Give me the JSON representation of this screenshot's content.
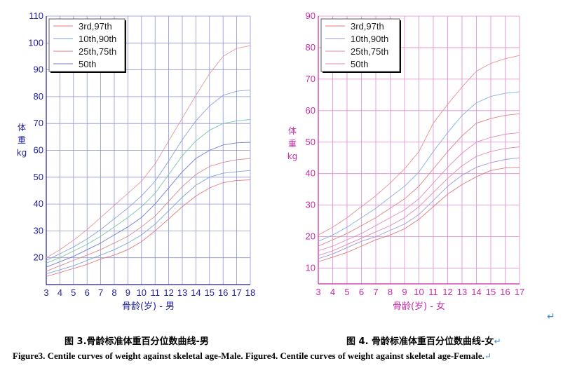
{
  "captions": {
    "male_cn": "图 3.骨龄标准体重百分位数曲线-男",
    "female_cn": "图 4. 骨龄标准体重百分位数曲线-女",
    "english": "Figure3. Centile curves of weight against skeletal age-Male. Figure4. Centile curves of weight against skeletal age-Female."
  },
  "chart_data": [
    {
      "type": "line",
      "id": "male",
      "color": "#1f1f9e",
      "xlabel": "骨龄(岁) - 男",
      "ylabel_lines": [
        "体",
        "重",
        "kg"
      ],
      "xlim": [
        3,
        18
      ],
      "ylim": [
        10,
        110
      ],
      "xticks": [
        3,
        4,
        5,
        6,
        7,
        8,
        9,
        10,
        11,
        12,
        13,
        14,
        15,
        16,
        17,
        18
      ],
      "yticks": [
        20,
        30,
        40,
        50,
        60,
        70,
        80,
        90,
        100,
        110
      ],
      "grid": true,
      "legend_position": "top-left",
      "legend": [
        "3rd,97th",
        "10th,90th",
        "25th,75th",
        "50th"
      ],
      "x": [
        3,
        4,
        5,
        6,
        7,
        8,
        9,
        10,
        11,
        12,
        13,
        14,
        15,
        16,
        17,
        18
      ],
      "series": [
        {
          "group": "3rd,97th",
          "color": "#e07a7a",
          "values": [
            13,
            14.5,
            16,
            17.5,
            19.5,
            21,
            23,
            26,
            30,
            34.5,
            39,
            43,
            46,
            48,
            48.8,
            49
          ]
        },
        {
          "group": "10th,90th",
          "color": "#7fa3d6",
          "values": [
            14,
            15.5,
            17,
            19,
            21,
            23,
            25.5,
            28.5,
            32.5,
            37.5,
            42.5,
            47,
            50,
            51.5,
            52,
            52.5
          ]
        },
        {
          "group": "25th,75th",
          "color": "#d88a8a",
          "values": [
            15,
            17,
            19,
            21,
            23,
            25.5,
            28,
            31.5,
            35.5,
            41,
            46.5,
            51,
            54,
            55.5,
            56.5,
            57
          ]
        },
        {
          "group": "50th",
          "color": "#6f7fd0",
          "values": [
            16.5,
            18.5,
            20.5,
            23,
            25.5,
            28.5,
            31.5,
            35,
            40,
            46,
            52,
            57,
            60,
            62,
            62.8,
            63
          ]
        },
        {
          "group": "25th,75th",
          "color": "#7cc7a8",
          "values": [
            18,
            20,
            22.5,
            25,
            28,
            31.5,
            35,
            39,
            44,
            51,
            58,
            63.5,
            67.5,
            70,
            71,
            71.5
          ]
        },
        {
          "group": "10th,90th",
          "color": "#8aa0d8",
          "values": [
            19,
            21.5,
            24,
            27,
            30.5,
            34.5,
            38.5,
            43,
            48.5,
            56,
            64,
            71,
            76.5,
            80.5,
            82,
            82.5
          ]
        },
        {
          "group": "3rd,97th",
          "color": "#e39a9a",
          "values": [
            20,
            23,
            26.5,
            30.5,
            35,
            39.5,
            44,
            48.5,
            55,
            63.5,
            72,
            80.5,
            88.5,
            95,
            98,
            99
          ]
        }
      ]
    },
    {
      "type": "line",
      "id": "female",
      "color": "#c62ba8",
      "xlabel": "骨龄(岁) - 女",
      "ylabel_lines": [
        "体",
        "重",
        "kg"
      ],
      "xlim": [
        3,
        17
      ],
      "ylim": [
        5,
        90
      ],
      "xticks": [
        3,
        4,
        5,
        6,
        7,
        8,
        9,
        10,
        11,
        12,
        13,
        14,
        15,
        16,
        17
      ],
      "yticks": [
        10,
        20,
        30,
        40,
        50,
        60,
        70,
        80,
        90
      ],
      "grid": true,
      "legend_position": "top-left",
      "legend": [
        "3rd,97th",
        "10th,90th",
        "25th,75th",
        "50th"
      ],
      "x": [
        3,
        4,
        5,
        6,
        7,
        8,
        9,
        10,
        11,
        12,
        13,
        14,
        15,
        16,
        17
      ],
      "series": [
        {
          "group": "3rd,97th",
          "color": "#e07a7a",
          "values": [
            12,
            13.5,
            15,
            17,
            19,
            20.5,
            22.5,
            25.5,
            29.5,
            33.5,
            36.5,
            39,
            41,
            41.8,
            42
          ]
        },
        {
          "group": "10th,90th",
          "color": "#9a9ad8",
          "values": [
            13,
            14.5,
            16.5,
            18.5,
            20,
            22,
            24,
            27,
            31.5,
            36,
            39.5,
            42,
            43.5,
            44.5,
            45
          ]
        },
        {
          "group": "25th,75th",
          "color": "#e08ab0",
          "values": [
            14,
            15.5,
            17.5,
            19.5,
            21.5,
            23.5,
            26,
            29.5,
            34,
            38.5,
            42.5,
            45.5,
            47,
            48,
            48.5
          ]
        },
        {
          "group": "50th",
          "color": "#e48ac0",
          "values": [
            15.5,
            17,
            19,
            21,
            23.5,
            26,
            28.5,
            32,
            37,
            42,
            46.5,
            50,
            51.5,
            52.5,
            53
          ]
        },
        {
          "group": "25th,75th",
          "color": "#e08080",
          "values": [
            17,
            19,
            21,
            23.5,
            26,
            29,
            32,
            36,
            41.5,
            47,
            52,
            56,
            57.5,
            58.5,
            59
          ]
        },
        {
          "group": "10th,90th",
          "color": "#7fb2e6",
          "values": [
            18.5,
            20.5,
            23,
            26,
            29,
            32.5,
            36,
            40.5,
            47,
            53,
            58.5,
            62.5,
            64.5,
            65.5,
            66
          ]
        },
        {
          "group": "3rd,97th",
          "color": "#e89090",
          "values": [
            20.5,
            23,
            26,
            29.5,
            33,
            37,
            41.5,
            47,
            56,
            62,
            67.5,
            72.5,
            75,
            76.5,
            77.5
          ]
        }
      ]
    }
  ]
}
